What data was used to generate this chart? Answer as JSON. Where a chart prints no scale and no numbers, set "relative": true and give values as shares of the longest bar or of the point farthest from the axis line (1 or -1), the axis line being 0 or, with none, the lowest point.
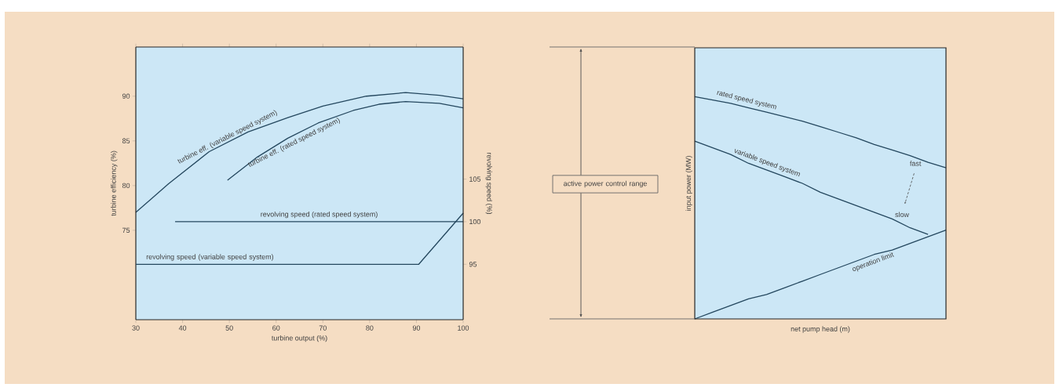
{
  "chart_data": [
    {
      "type": "line",
      "xlabel": "turbine output (%)",
      "ylabel": "turbine efficiency (%)",
      "y2label": "revolving speed (%)",
      "xlim": [
        30,
        100
      ],
      "xticks": [
        30,
        40,
        50,
        60,
        70,
        80,
        90,
        100
      ],
      "ylim": [
        65,
        95.5
      ],
      "yticks": [
        75,
        80,
        85,
        90
      ],
      "y2lim": [
        88.5,
        120.5
      ],
      "y2ticks": [
        95,
        100,
        105
      ],
      "series": [
        {
          "name": "turbine eff. (variable speed system)",
          "color": "#24475e",
          "x": [
            30,
            37,
            45.7,
            54,
            62.5,
            70,
            79.3,
            87.7,
            94.9,
            100
          ],
          "values": [
            77.0,
            80.2,
            83.8,
            86.0,
            87.6,
            88.9,
            90.0,
            90.4,
            90.1,
            89.7
          ]
        },
        {
          "name": "turbine eff. (rated speed system)",
          "color": "#24475e",
          "x": [
            49.6,
            56,
            62.5,
            69,
            76.5,
            82,
            87.7,
            94.9,
            100
          ],
          "values": [
            80.6,
            83.2,
            85.3,
            87.0,
            88.4,
            89.1,
            89.4,
            89.2,
            88.7
          ]
        },
        {
          "name": "revolving speed (rated speed system)",
          "color": "#24475e",
          "axis": "y2",
          "x": [
            38.4,
            100
          ],
          "values": [
            100,
            100
          ]
        },
        {
          "name": "revolving speed (variable speed system)",
          "color": "#24475e",
          "axis": "y2",
          "x": [
            30,
            90.5,
            100
          ],
          "values": [
            95,
            95,
            101
          ]
        }
      ]
    },
    {
      "type": "line",
      "relative": true,
      "xlabel": "net pump head (m)",
      "ylabel": "input power (MW)",
      "categories": [
        null,
        null,
        null,
        null,
        null,
        null,
        null,
        null,
        null,
        null,
        null,
        null,
        null,
        null,
        null
      ],
      "series": [
        {
          "name": "rated speed system",
          "color": "#24475e",
          "values": [
            1.0,
            0.985,
            0.97,
            0.95,
            0.93,
            0.91,
            0.89,
            0.865,
            0.84,
            0.815,
            0.785,
            0.76,
            0.735,
            0.705,
            0.68
          ]
        },
        {
          "name": "variable speed system",
          "color": "#24475e",
          "values": [
            0.8,
            0.77,
            0.74,
            0.7,
            0.67,
            0.64,
            0.61,
            0.57,
            0.54,
            0.51,
            0.48,
            0.45,
            0.41,
            0.38,
            null
          ]
        },
        {
          "name": "operation limit",
          "color": "#24475e",
          "values": [
            0,
            0.03,
            0.06,
            0.09,
            0.11,
            0.14,
            0.17,
            0.2,
            0.23,
            0.26,
            0.29,
            0.31,
            0.34,
            0.37,
            0.4
          ]
        }
      ],
      "annotations": [
        "active power control range",
        "fast",
        "slow"
      ]
    }
  ]
}
